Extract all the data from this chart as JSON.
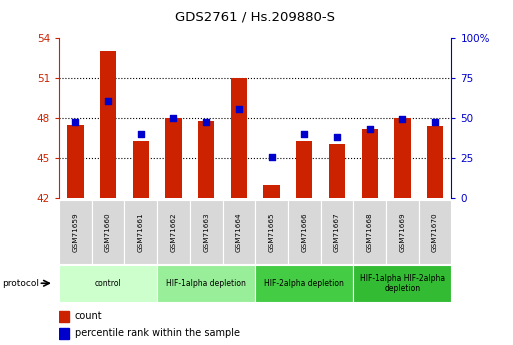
{
  "title": "GDS2761 / Hs.209880-S",
  "samples": [
    "GSM71659",
    "GSM71660",
    "GSM71661",
    "GSM71662",
    "GSM71663",
    "GSM71664",
    "GSM71665",
    "GSM71666",
    "GSM71667",
    "GSM71668",
    "GSM71669",
    "GSM71670"
  ],
  "counts": [
    47.5,
    53.0,
    46.3,
    48.0,
    47.8,
    51.0,
    43.0,
    46.3,
    46.1,
    47.2,
    48.0,
    47.4
  ],
  "percentiles_pct": [
    47.9,
    61.0,
    40.0,
    50.0,
    47.5,
    56.0,
    25.5,
    40.0,
    38.0,
    43.0,
    49.5,
    47.5
  ],
  "ylim": [
    42,
    54
  ],
  "yticks": [
    42,
    45,
    48,
    51,
    54
  ],
  "y2lim": [
    0,
    100
  ],
  "y2ticks": [
    0,
    25,
    50,
    75,
    100
  ],
  "y2ticklabels": [
    "0",
    "25",
    "50",
    "75",
    "100%"
  ],
  "bar_color": "#cc2200",
  "dot_color": "#0000cc",
  "bar_width": 0.5,
  "dot_size": 25,
  "protocol_groups": [
    {
      "label": "control",
      "start": 0,
      "end": 2,
      "color": "#ccffcc"
    },
    {
      "label": "HIF-1alpha depletion",
      "start": 3,
      "end": 5,
      "color": "#99ee99"
    },
    {
      "label": "HIF-2alpha depletion",
      "start": 6,
      "end": 8,
      "color": "#44cc44"
    },
    {
      "label": "HIF-1alpha HIF-2alpha\ndepletion",
      "start": 9,
      "end": 11,
      "color": "#33bb33"
    }
  ],
  "tick_label_color": "#cc2200",
  "y2_label_color": "#0000cc",
  "grid_color": "#000000",
  "sample_box_color": "#d8d8d8",
  "fig_width": 5.13,
  "fig_height": 3.45,
  "dpi": 100
}
